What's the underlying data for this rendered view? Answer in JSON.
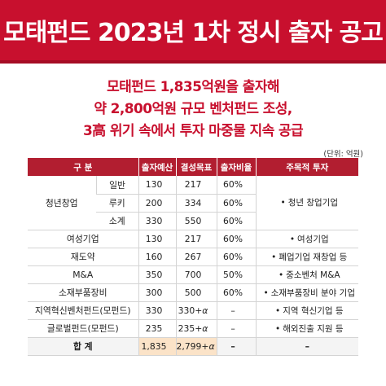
{
  "banner": {
    "title": "모태펀드 2023년 1차 정시 출자 공고"
  },
  "headline": {
    "lines": [
      "모태펀드 1,835억원을 출자해",
      "약 2,800억원 규모 벤처펀드 조성,",
      "3高 위기 속에서 투자 마중물 지속 공급"
    ]
  },
  "unit_note": "(단위: 억원)",
  "table": {
    "headers": {
      "category": "구   분",
      "investment": "출자예산",
      "target": "결성목표",
      "ratio": "출자비율",
      "focus": "주목적 투자"
    },
    "youth_group": {
      "label": "청년창업",
      "focus_bullet": "•",
      "focus": "청년 창업기업",
      "rows": [
        {
          "sub": "일반",
          "investment": "130",
          "target": "217",
          "ratio": "60%"
        },
        {
          "sub": "루키",
          "investment": "200",
          "target": "334",
          "ratio": "60%"
        },
        {
          "sub": "소계",
          "investment": "330",
          "target": "550",
          "ratio": "60%"
        }
      ]
    },
    "rows": [
      {
        "category": "여성기업",
        "investment": "130",
        "target": "217",
        "target_suffix": "",
        "ratio": "60%",
        "focus_bullet": "•",
        "focus": "여성기업"
      },
      {
        "category": "재도약",
        "investment": "160",
        "target": "267",
        "target_suffix": "",
        "ratio": "60%",
        "focus_bullet": "•",
        "focus": "폐업기업 재창업 등"
      },
      {
        "category": "M&A",
        "investment": "350",
        "target": "700",
        "target_suffix": "",
        "ratio": "50%",
        "focus_bullet": "•",
        "focus": "중소벤처 M&A"
      },
      {
        "category": "소재부품장비",
        "investment": "300",
        "target": "500",
        "target_suffix": "",
        "ratio": "60%",
        "focus_bullet": "•",
        "focus": "소재부품장비 분야 기업"
      },
      {
        "category": "지역혁신벤처펀드(모펀드)",
        "investment": "330",
        "target": "330+",
        "target_suffix": "α",
        "ratio": "–",
        "focus_bullet": "•",
        "focus": "지역 혁신기업 등"
      },
      {
        "category": "글로벌펀드(모펀드)",
        "investment": "235",
        "target": "235+",
        "target_suffix": "α",
        "ratio": "–",
        "focus_bullet": "•",
        "focus": "해외진출 지원 등"
      }
    ],
    "total": {
      "label": "합  계",
      "investment": "1,835",
      "target": "2,799+",
      "target_suffix": "α",
      "ratio": "–",
      "focus": "–"
    }
  },
  "colors": {
    "brand_red": "#c8102e",
    "header_red": "#b21e30",
    "total_highlight": "#fbe3c8"
  }
}
